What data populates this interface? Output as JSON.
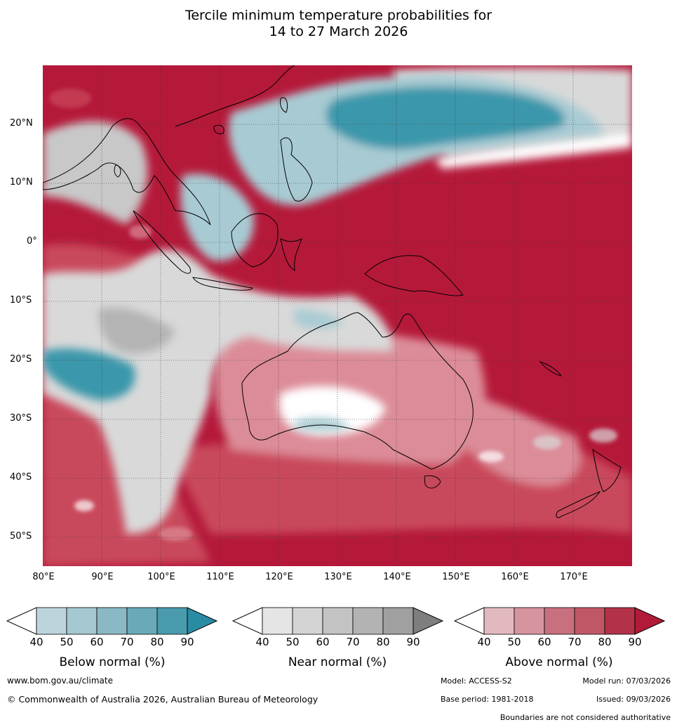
{
  "title": {
    "line1": "Tercile minimum temperature probabilities for",
    "line2": "14 to 27 March 2026"
  },
  "map": {
    "lat_labels": [
      "20°N",
      "10°N",
      "0°",
      "10°S",
      "20°S",
      "30°S",
      "40°S",
      "50°S"
    ],
    "lon_labels": [
      "80°E",
      "90°E",
      "100°E",
      "110°E",
      "120°E",
      "130°E",
      "140°E",
      "150°E",
      "160°E",
      "170°E"
    ],
    "colors": {
      "above_strong": "#b5193a",
      "above_mid": "#c9485c",
      "above_light": "#dc8c98",
      "near_light": "#d9d9d9",
      "near_mid": "#b4b4b4",
      "below_light": "#a8cbd3",
      "below_strong": "#3a97ab",
      "land_outline": "#000000"
    }
  },
  "colorbars": [
    {
      "label": "Below normal (%)",
      "ticks": [
        "40",
        "50",
        "60",
        "70",
        "80",
        "90"
      ],
      "colors": [
        "#ffffff",
        "#bcd5dc",
        "#a5c7cf",
        "#8ab9c5",
        "#6aa9b8",
        "#4a9bad",
        "#2a8ca3"
      ]
    },
    {
      "label": "Near normal (%)",
      "ticks": [
        "40",
        "50",
        "60",
        "70",
        "80",
        "90"
      ],
      "colors": [
        "#ffffff",
        "#e5e5e5",
        "#d4d4d4",
        "#c3c3c3",
        "#b3b3b3",
        "#a0a0a0",
        "#7e7e7e"
      ]
    },
    {
      "label": "Above normal (%)",
      "ticks": [
        "40",
        "50",
        "60",
        "70",
        "80",
        "90"
      ],
      "colors": [
        "#ffffff",
        "#e3b9c0",
        "#d6949f",
        "#c9707e",
        "#c05766",
        "#b3324a",
        "#b11a3a"
      ]
    }
  ],
  "footer": {
    "website": "www.bom.gov.au/climate",
    "copyright": "© Commonwealth of Australia 2026, Australian Bureau of Meteorology",
    "model": "Model: ACCESS-S2",
    "model_run": "Model run: 07/03/2026",
    "base_period": "Base period: 1981-2018",
    "issued": "Issued: 09/03/2026",
    "disclaimer": "Boundaries are not considered authoritative"
  }
}
